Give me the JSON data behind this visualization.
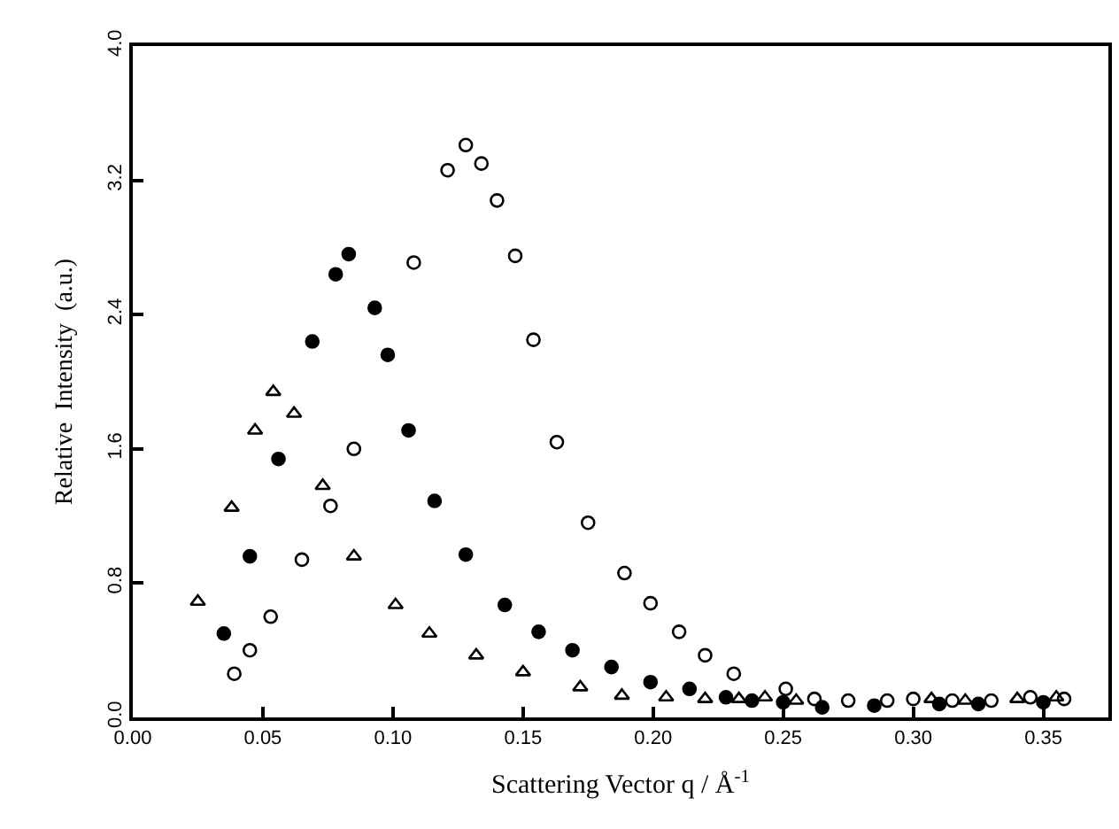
{
  "chart_data": {
    "type": "scatter",
    "xlabel": "Scattering Vector q / Å$^{-1}$",
    "ylabel": "Relative  Intensity  (a.u.)",
    "xlim": [
      0,
      0.375
    ],
    "ylim": [
      0,
      4.0
    ],
    "xticks": [
      {
        "value": 0,
        "label": "0.00"
      },
      0.05,
      {
        "value": 0.1,
        "label": "0.10"
      },
      0.15,
      {
        "value": 0.2,
        "label": "0.20"
      },
      0.25,
      {
        "value": 0.3,
        "label": "0.30"
      },
      0.35
    ],
    "yticks": [
      {
        "value": 0,
        "label": "0.0"
      },
      0.8,
      1.6,
      2.4,
      3.2,
      {
        "value": 4,
        "label": "4.0"
      }
    ],
    "series": [
      {
        "marker": "triangle-open",
        "color": "#000000",
        "x": [
          0.025,
          0.038,
          0.047,
          0.054,
          0.062,
          0.073,
          0.085,
          0.101,
          0.114,
          0.132,
          0.15,
          0.172,
          0.188,
          0.205,
          0.22,
          0.233,
          0.243,
          0.255,
          0.307,
          0.32,
          0.34,
          0.355
        ],
        "values": [
          0.69,
          1.25,
          1.71,
          1.94,
          1.81,
          1.38,
          0.96,
          0.67,
          0.5,
          0.37,
          0.27,
          0.18,
          0.13,
          0.12,
          0.11,
          0.11,
          0.12,
          0.1,
          0.11,
          0.1,
          0.11,
          0.12
        ]
      },
      {
        "marker": "circle",
        "color": "#000000",
        "x": [
          0.035,
          0.045,
          0.056,
          0.069,
          0.078,
          0.083,
          0.093,
          0.098,
          0.106,
          0.116,
          0.128,
          0.143,
          0.156,
          0.169,
          0.184,
          0.199,
          0.214,
          0.228,
          0.238,
          0.25,
          0.265,
          0.285,
          0.31,
          0.325,
          0.35
        ],
        "values": [
          0.5,
          0.96,
          1.54,
          2.24,
          2.64,
          2.76,
          2.44,
          2.16,
          1.71,
          1.29,
          0.97,
          0.67,
          0.51,
          0.4,
          0.3,
          0.21,
          0.17,
          0.12,
          0.1,
          0.09,
          0.06,
          0.07,
          0.08,
          0.08,
          0.09
        ]
      },
      {
        "marker": "circle-open",
        "color": "#000000",
        "x": [
          0.039,
          0.045,
          0.053,
          0.065,
          0.076,
          0.085,
          0.108,
          0.121,
          0.128,
          0.134,
          0.14,
          0.147,
          0.154,
          0.163,
          0.175,
          0.189,
          0.199,
          0.21,
          0.22,
          0.231,
          0.251,
          0.262,
          0.275,
          0.29,
          0.3,
          0.315,
          0.33,
          0.345,
          0.358
        ],
        "values": [
          0.26,
          0.4,
          0.6,
          0.94,
          1.26,
          1.6,
          2.71,
          3.26,
          3.41,
          3.3,
          3.08,
          2.75,
          2.25,
          1.64,
          1.16,
          0.86,
          0.68,
          0.51,
          0.37,
          0.26,
          0.17,
          0.11,
          0.1,
          0.1,
          0.11,
          0.1,
          0.1,
          0.12,
          0.11
        ]
      }
    ]
  }
}
